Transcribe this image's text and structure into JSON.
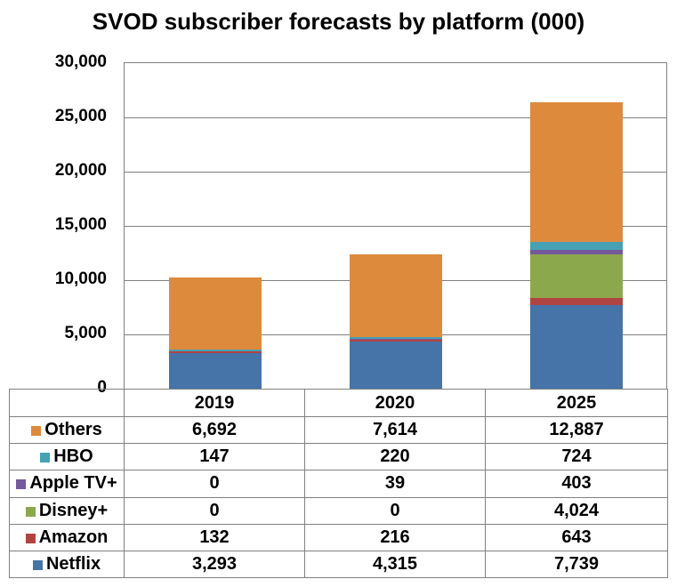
{
  "chart_data": {
    "type": "bar",
    "stacked": true,
    "title": "SVOD subscriber forecasts by platform (000)",
    "categories": [
      "2019",
      "2020",
      "2025"
    ],
    "series": [
      {
        "name": "Netflix",
        "color": "#4673A8",
        "values": [
          3293,
          4315,
          7739
        ]
      },
      {
        "name": "Amazon",
        "color": "#B04443",
        "values": [
          132,
          216,
          643
        ]
      },
      {
        "name": "Disney+",
        "color": "#8CA84D",
        "values": [
          0,
          0,
          4024
        ]
      },
      {
        "name": "Apple TV+",
        "color": "#74599B",
        "values": [
          0,
          39,
          403
        ]
      },
      {
        "name": "HBO",
        "color": "#46A1B4",
        "values": [
          147,
          220,
          724
        ]
      },
      {
        "name": "Others",
        "color": "#DD8A3D",
        "values": [
          6692,
          7614,
          12887
        ]
      }
    ],
    "ylim": [
      0,
      30000
    ],
    "ytick_step": 5000,
    "ytick_labels_top_to_bottom": [
      "30,000",
      "25,000",
      "20,000",
      "15,000",
      "10,000",
      "5,000",
      "0"
    ],
    "grid": "horizontal",
    "legend_position": "attached-data-table-left-column"
  },
  "data_table": {
    "year_headers": [
      "2019",
      "2020",
      "2025"
    ],
    "rows": [
      {
        "label": "Others",
        "color": "#DD8A3D",
        "values": [
          "6,692",
          "7,614",
          "12,887"
        ]
      },
      {
        "label": "HBO",
        "color": "#46A1B4",
        "values": [
          "147",
          "220",
          "724"
        ]
      },
      {
        "label": "Apple TV+",
        "color": "#74599B",
        "values": [
          "0",
          "39",
          "403"
        ]
      },
      {
        "label": "Disney+",
        "color": "#8CA84D",
        "values": [
          "0",
          "0",
          "4,024"
        ]
      },
      {
        "label": "Amazon",
        "color": "#B04443",
        "values": [
          "132",
          "216",
          "643"
        ]
      },
      {
        "label": "Netflix",
        "color": "#4673A8",
        "values": [
          "3,293",
          "4,315",
          "7,739"
        ]
      }
    ]
  },
  "colors": {
    "grid_and_border": "#808080",
    "text": "#000000",
    "background": "#FFFFFF"
  }
}
